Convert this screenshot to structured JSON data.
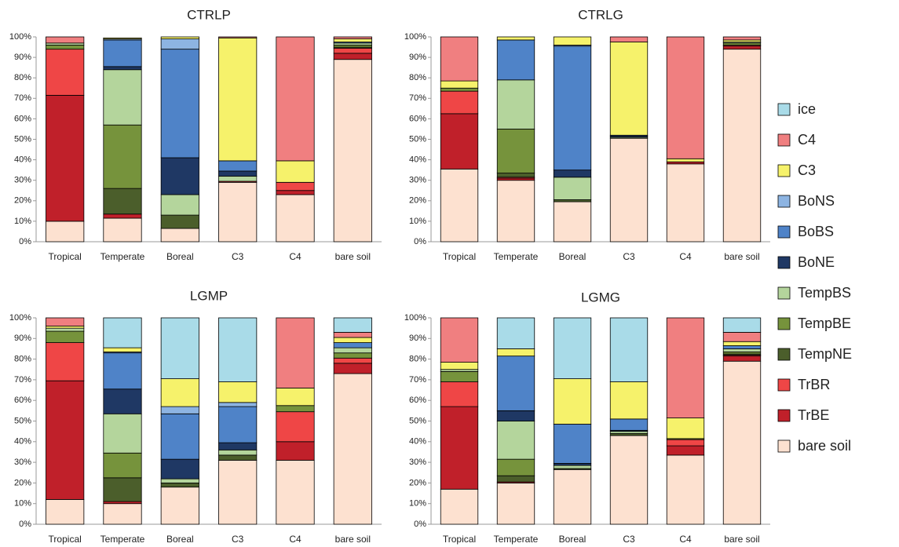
{
  "chart_data": [
    {
      "type": "stacked-bar",
      "title": "CTRLP",
      "categories": [
        "Tropical",
        "Temperate",
        "Boreal",
        "C3",
        "C4",
        "bare soil"
      ],
      "ylim": [
        0,
        100
      ],
      "yticks": [
        {
          "value": 0,
          "label": "0%"
        },
        {
          "value": 10,
          "label": "10%"
        },
        {
          "value": 20,
          "label": "20%"
        },
        {
          "value": 30,
          "label": "30%"
        },
        {
          "value": 40,
          "label": "40%"
        },
        {
          "value": 50,
          "label": "50%"
        },
        {
          "value": 60,
          "label": "60%"
        },
        {
          "value": 70,
          "label": "70%"
        },
        {
          "value": 80,
          "label": "80%"
        },
        {
          "value": 90,
          "label": "90%"
        },
        {
          "value": 100,
          "label": "100%"
        }
      ],
      "series": [
        {
          "name": "bare soil",
          "color": "#fde1d0",
          "values": [
            10,
            11.5,
            6.5,
            29,
            23,
            89
          ]
        },
        {
          "name": "TrBE",
          "color": "#c0202a",
          "values": [
            61.5,
            2,
            0,
            0.5,
            2,
            3
          ]
        },
        {
          "name": "TrBR",
          "color": "#ef4646",
          "values": [
            22.5,
            0,
            0,
            0,
            4,
            2.5
          ]
        },
        {
          "name": "TempNE",
          "color": "#4b5e2b",
          "values": [
            0,
            12.5,
            6.5,
            0,
            0,
            0.5
          ]
        },
        {
          "name": "TempBE",
          "color": "#76933c",
          "values": [
            2,
            31,
            0,
            0,
            0,
            1
          ]
        },
        {
          "name": "TempBS",
          "color": "#b4d59c",
          "values": [
            1,
            27,
            10,
            2.5,
            0,
            1
          ]
        },
        {
          "name": "BoNE",
          "color": "#1f3864",
          "values": [
            0,
            1.5,
            18,
            2.5,
            0,
            0
          ]
        },
        {
          "name": "BoBS",
          "color": "#4f83c8",
          "values": [
            0,
            13,
            53,
            5,
            0,
            0.5
          ]
        },
        {
          "name": "BoNS",
          "color": "#8db4e2",
          "values": [
            0,
            0.5,
            5,
            0,
            0,
            0
          ]
        },
        {
          "name": "C3",
          "color": "#f6f26b",
          "values": [
            0,
            0.5,
            1,
            60,
            10.5,
            1.5
          ]
        },
        {
          "name": "C4",
          "color": "#f07f80",
          "values": [
            3,
            0,
            0,
            0.5,
            60.5,
            1
          ]
        },
        {
          "name": "ice",
          "color": "#a9dbe8",
          "values": [
            0,
            0,
            0,
            0,
            0,
            0
          ]
        }
      ]
    },
    {
      "type": "stacked-bar",
      "title": "CTRLG",
      "categories": [
        "Tropical",
        "Temperate",
        "Boreal",
        "C3",
        "C4",
        "bare soil"
      ],
      "ylim": [
        0,
        100
      ],
      "yticks": [
        {
          "value": 0,
          "label": "0%"
        },
        {
          "value": 10,
          "label": "10%"
        },
        {
          "value": 20,
          "label": "20%"
        },
        {
          "value": 30,
          "label": "30%"
        },
        {
          "value": 40,
          "label": "40%"
        },
        {
          "value": 50,
          "label": "50%"
        },
        {
          "value": 60,
          "label": "60%"
        },
        {
          "value": 70,
          "label": "70%"
        },
        {
          "value": 80,
          "label": "80%"
        },
        {
          "value": 90,
          "label": "90%"
        },
        {
          "value": 100,
          "label": "100%"
        }
      ],
      "series": [
        {
          "name": "bare soil",
          "color": "#fde1d0",
          "values": [
            35.5,
            30,
            19.5,
            50.5,
            38,
            94
          ]
        },
        {
          "name": "TrBE",
          "color": "#c0202a",
          "values": [
            27,
            1,
            0,
            0,
            1,
            1.5
          ]
        },
        {
          "name": "TrBR",
          "color": "#ef4646",
          "values": [
            11,
            0.5,
            0,
            0,
            0,
            0.5
          ]
        },
        {
          "name": "TempNE",
          "color": "#4b5e2b",
          "values": [
            0,
            2,
            1,
            0,
            0,
            0
          ]
        },
        {
          "name": "TempBE",
          "color": "#76933c",
          "values": [
            1.5,
            21.5,
            0,
            0,
            0,
            1
          ]
        },
        {
          "name": "TempBS",
          "color": "#b4d59c",
          "values": [
            0,
            24,
            11,
            0.5,
            0,
            0.5
          ]
        },
        {
          "name": "BoNE",
          "color": "#1f3864",
          "values": [
            0,
            0,
            3.5,
            0.5,
            0,
            0
          ]
        },
        {
          "name": "BoBS",
          "color": "#4f83c8",
          "values": [
            0,
            19.5,
            60.5,
            0.5,
            0,
            0
          ]
        },
        {
          "name": "BoNS",
          "color": "#8db4e2",
          "values": [
            0,
            0,
            0.5,
            0,
            0,
            0
          ]
        },
        {
          "name": "C3",
          "color": "#f6f26b",
          "values": [
            3.5,
            1.5,
            4,
            45.5,
            1.5,
            1
          ]
        },
        {
          "name": "C4",
          "color": "#f07f80",
          "values": [
            21.5,
            0,
            0,
            2.5,
            59.5,
            1.5
          ]
        },
        {
          "name": "ice",
          "color": "#a9dbe8",
          "values": [
            0,
            0,
            0,
            0,
            0,
            0
          ]
        }
      ]
    },
    {
      "type": "stacked-bar",
      "title": "LGMP",
      "categories": [
        "Tropical",
        "Temperate",
        "Boreal",
        "C3",
        "C4",
        "bare soil"
      ],
      "ylim": [
        0,
        100
      ],
      "yticks": [
        {
          "value": 0,
          "label": "0%"
        },
        {
          "value": 10,
          "label": "10%"
        },
        {
          "value": 20,
          "label": "20%"
        },
        {
          "value": 30,
          "label": "30%"
        },
        {
          "value": 40,
          "label": "40%"
        },
        {
          "value": 50,
          "label": "50%"
        },
        {
          "value": 60,
          "label": "60%"
        },
        {
          "value": 70,
          "label": "70%"
        },
        {
          "value": 80,
          "label": "80%"
        },
        {
          "value": 90,
          "label": "90%"
        },
        {
          "value": 100,
          "label": "100%"
        }
      ],
      "series": [
        {
          "name": "bare soil",
          "color": "#fde1d0",
          "values": [
            12,
            10,
            18,
            31,
            31,
            73
          ]
        },
        {
          "name": "TrBE",
          "color": "#c0202a",
          "values": [
            57.5,
            1,
            0,
            0,
            9,
            5
          ]
        },
        {
          "name": "TrBR",
          "color": "#ef4646",
          "values": [
            18.5,
            0,
            0,
            0,
            14.5,
            2.5
          ]
        },
        {
          "name": "TempNE",
          "color": "#4b5e2b",
          "values": [
            0,
            11.5,
            2,
            2.5,
            0,
            0
          ]
        },
        {
          "name": "TempBE",
          "color": "#76933c",
          "values": [
            5.5,
            12,
            0,
            0,
            3,
            2.5
          ]
        },
        {
          "name": "TempBS",
          "color": "#b4d59c",
          "values": [
            1.5,
            19,
            2,
            2.5,
            0,
            2.5
          ]
        },
        {
          "name": "BoNE",
          "color": "#1f3864",
          "values": [
            0,
            12,
            9.5,
            3.5,
            0,
            0
          ]
        },
        {
          "name": "BoBS",
          "color": "#4f83c8",
          "values": [
            0,
            17.5,
            22,
            17.5,
            0,
            2.5
          ]
        },
        {
          "name": "BoNS",
          "color": "#8db4e2",
          "values": [
            0,
            0.5,
            3.5,
            2,
            0,
            0
          ]
        },
        {
          "name": "C3",
          "color": "#f6f26b",
          "values": [
            1,
            2,
            13.5,
            10,
            8.5,
            2.5
          ]
        },
        {
          "name": "C4",
          "color": "#f07f80",
          "values": [
            4,
            0,
            0,
            0,
            34,
            2.5
          ]
        },
        {
          "name": "ice",
          "color": "#a9dbe8",
          "values": [
            0,
            14.5,
            29.5,
            31,
            0,
            7
          ]
        }
      ]
    },
    {
      "type": "stacked-bar",
      "title": "LGMG",
      "categories": [
        "Tropical",
        "Temperate",
        "Boreal",
        "C3",
        "C4",
        "bare soil"
      ],
      "ylim": [
        0,
        100
      ],
      "yticks": [
        {
          "value": 0,
          "label": "0%"
        },
        {
          "value": 10,
          "label": "10%"
        },
        {
          "value": 20,
          "label": "20%"
        },
        {
          "value": 30,
          "label": "30%"
        },
        {
          "value": 40,
          "label": "40%"
        },
        {
          "value": 50,
          "label": "50%"
        },
        {
          "value": 60,
          "label": "60%"
        },
        {
          "value": 70,
          "label": "70%"
        },
        {
          "value": 80,
          "label": "80%"
        },
        {
          "value": 90,
          "label": "90%"
        },
        {
          "value": 100,
          "label": "100%"
        }
      ],
      "series": [
        {
          "name": "bare soil",
          "color": "#fde1d0",
          "values": [
            17,
            20,
            26.5,
            43,
            33.5,
            79
          ]
        },
        {
          "name": "TrBE",
          "color": "#c0202a",
          "values": [
            40,
            0.5,
            0,
            0,
            4.5,
            2.5
          ]
        },
        {
          "name": "TrBR",
          "color": "#ef4646",
          "values": [
            12,
            0,
            0,
            0,
            3,
            0.5
          ]
        },
        {
          "name": "TempNE",
          "color": "#4b5e2b",
          "values": [
            0,
            3,
            0.5,
            1,
            0,
            0.5
          ]
        },
        {
          "name": "TempBE",
          "color": "#76933c",
          "values": [
            5,
            8,
            0,
            0,
            0.5,
            1
          ]
        },
        {
          "name": "TempBS",
          "color": "#b4d59c",
          "values": [
            1,
            18.5,
            1.5,
            1,
            0,
            1.5
          ]
        },
        {
          "name": "BoNE",
          "color": "#1f3864",
          "values": [
            0,
            5,
            1,
            0.5,
            0,
            0
          ]
        },
        {
          "name": "BoBS",
          "color": "#4f83c8",
          "values": [
            0,
            26.5,
            19,
            5.5,
            0,
            1.5
          ]
        },
        {
          "name": "BoNS",
          "color": "#8db4e2",
          "values": [
            0,
            0,
            0,
            0,
            0,
            0
          ]
        },
        {
          "name": "C3",
          "color": "#f6f26b",
          "values": [
            3.5,
            3.5,
            22,
            18,
            10,
            2
          ]
        },
        {
          "name": "C4",
          "color": "#f07f80",
          "values": [
            21.5,
            0,
            0,
            0,
            48.5,
            4.5
          ]
        },
        {
          "name": "ice",
          "color": "#a9dbe8",
          "values": [
            0,
            15,
            29.5,
            31,
            0,
            7
          ]
        }
      ]
    }
  ]
}
